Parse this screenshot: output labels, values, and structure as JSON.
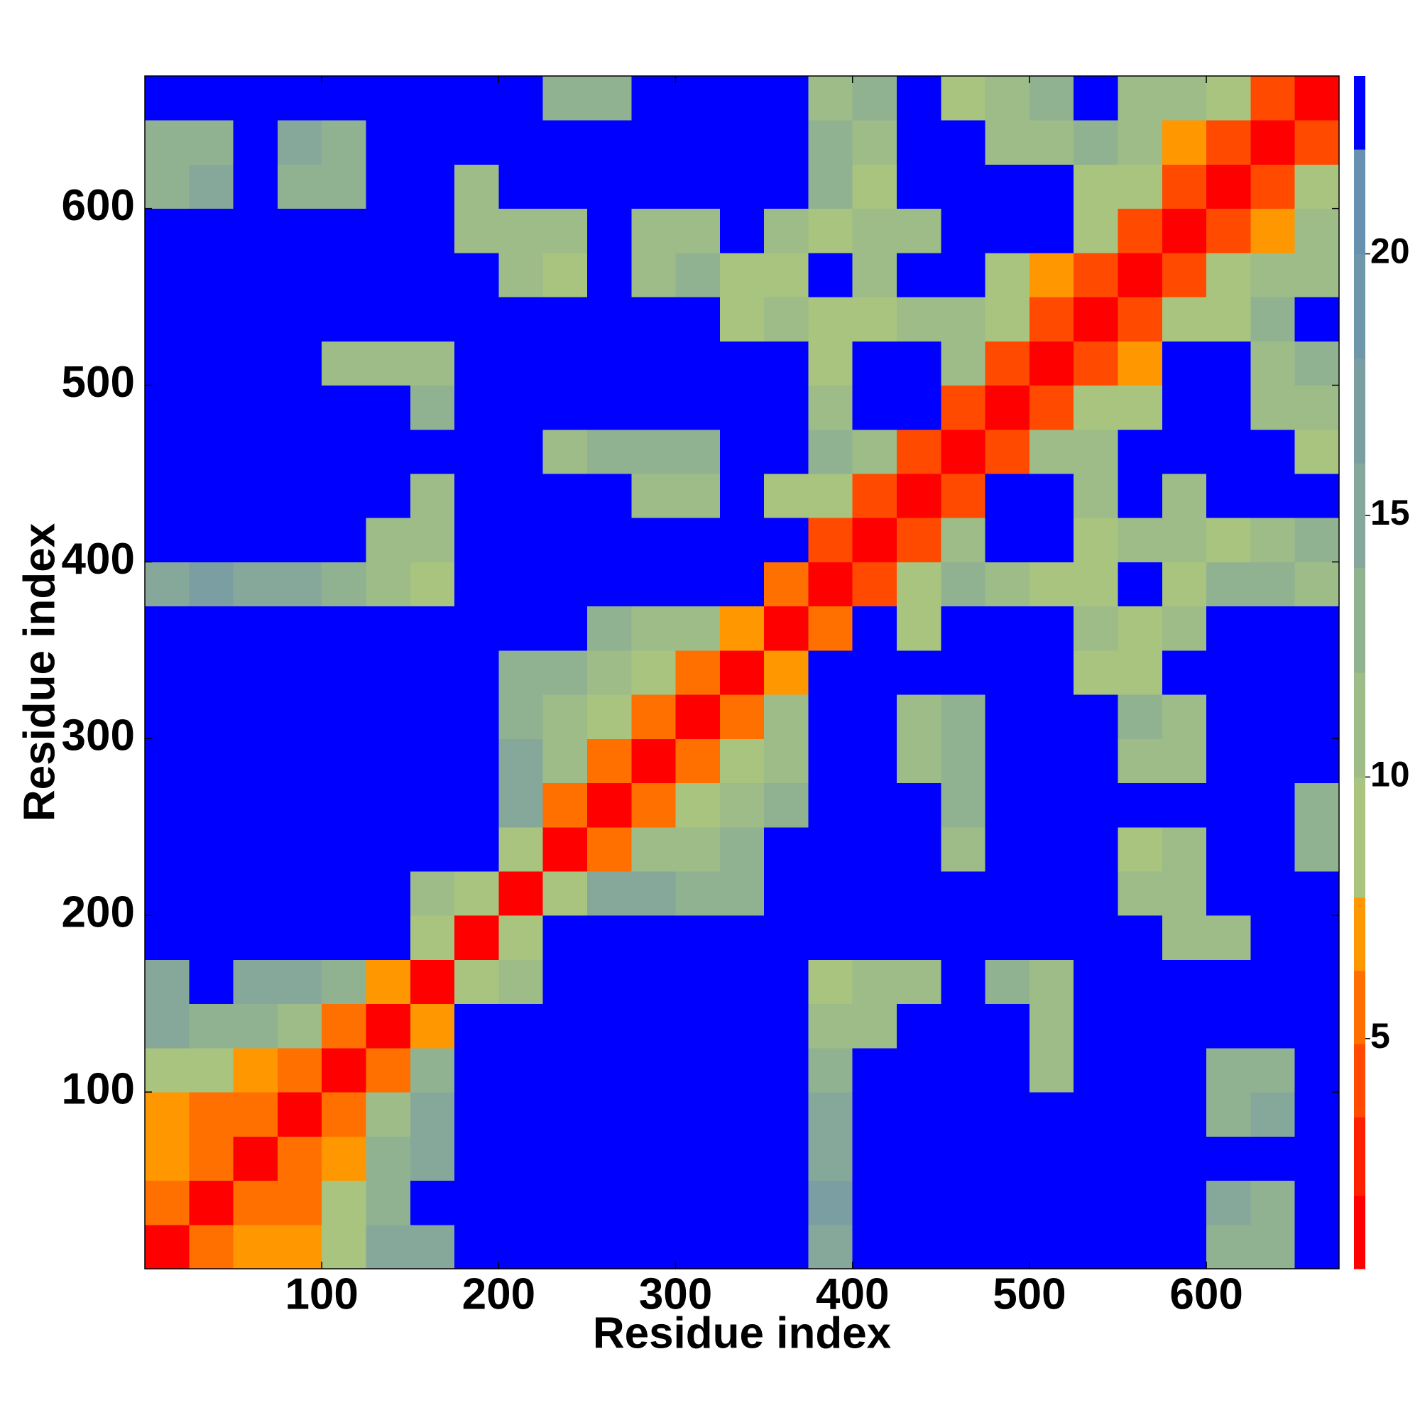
{
  "chart_data": {
    "type": "heatmap",
    "xlabel": "Residue index",
    "ylabel": "Residue index",
    "xlim": [
      0,
      675
    ],
    "ylim": [
      0,
      675
    ],
    "xticks": [
      100,
      200,
      300,
      400,
      500,
      600
    ],
    "yticks": [
      100,
      200,
      300,
      400,
      500,
      600
    ],
    "zlim": [
      0.6,
      23.4
    ],
    "zticks": [
      5,
      10,
      15,
      20
    ],
    "colorscale": [
      [
        0.6,
        "#ff0000"
      ],
      [
        2.0,
        "#ff2000"
      ],
      [
        3.5,
        "#ff4a00"
      ],
      [
        4.9,
        "#ff7000"
      ],
      [
        6.3,
        "#ff9800"
      ],
      [
        7.7,
        "#a8c47e"
      ],
      [
        10,
        "#9dbc88"
      ],
      [
        12,
        "#91b291"
      ],
      [
        14,
        "#86a89a"
      ],
      [
        16,
        "#7b9ea3"
      ],
      [
        18,
        "#7096aa"
      ],
      [
        20,
        "#6890b0"
      ],
      [
        22,
        "#0000ff"
      ]
    ],
    "values": [
      [
        1,
        5,
        7,
        7,
        8,
        14,
        15,
        23,
        23,
        23,
        23,
        23,
        23,
        23,
        23,
        15,
        23,
        23,
        23,
        23,
        23,
        23,
        23,
        23,
        13,
        13,
        23
      ],
      [
        5,
        1,
        5,
        6,
        8,
        13,
        23,
        23,
        23,
        23,
        23,
        23,
        23,
        23,
        23,
        16,
        23,
        23,
        23,
        23,
        23,
        23,
        23,
        23,
        14,
        13,
        23
      ],
      [
        7,
        5,
        1,
        5,
        7,
        12,
        15,
        23,
        23,
        23,
        23,
        23,
        23,
        23,
        23,
        14,
        23,
        23,
        23,
        23,
        23,
        23,
        23,
        23,
        23,
        23,
        23
      ],
      [
        7,
        6,
        5,
        1,
        5,
        10,
        14,
        23,
        23,
        23,
        23,
        23,
        23,
        23,
        23,
        14,
        23,
        23,
        23,
        23,
        23,
        23,
        23,
        23,
        13,
        14,
        23
      ],
      [
        8,
        8,
        7,
        5,
        1,
        6,
        13,
        23,
        23,
        23,
        23,
        23,
        23,
        23,
        23,
        13,
        23,
        23,
        23,
        23,
        11,
        23,
        23,
        23,
        12,
        13,
        23
      ],
      [
        14,
        13,
        12,
        10,
        6,
        1,
        7,
        23,
        23,
        23,
        23,
        23,
        23,
        23,
        23,
        10,
        11,
        23,
        23,
        23,
        10,
        23,
        23,
        23,
        23,
        23,
        23
      ],
      [
        15,
        23,
        15,
        14,
        13,
        7,
        1,
        8,
        10,
        23,
        23,
        23,
        23,
        23,
        23,
        9,
        10,
        11,
        23,
        13,
        11,
        23,
        23,
        23,
        23,
        23,
        23
      ],
      [
        23,
        23,
        23,
        23,
        23,
        23,
        8,
        1,
        9,
        23,
        23,
        23,
        23,
        23,
        23,
        23,
        23,
        23,
        23,
        23,
        23,
        23,
        23,
        10,
        10,
        23,
        23
      ],
      [
        23,
        23,
        23,
        23,
        23,
        23,
        10,
        9,
        1,
        8,
        14,
        15,
        12,
        12,
        23,
        23,
        23,
        23,
        23,
        23,
        23,
        23,
        10,
        11,
        23,
        23,
        23
      ],
      [
        23,
        23,
        23,
        23,
        23,
        23,
        23,
        23,
        8,
        1,
        6,
        10,
        11,
        13,
        23,
        23,
        23,
        23,
        10,
        23,
        23,
        23,
        9,
        10,
        23,
        23,
        12
      ],
      [
        23,
        23,
        23,
        23,
        23,
        23,
        23,
        23,
        14,
        6,
        1,
        6,
        8,
        11,
        12,
        23,
        23,
        23,
        13,
        23,
        23,
        23,
        23,
        23,
        23,
        23,
        12
      ],
      [
        23,
        23,
        23,
        23,
        23,
        23,
        23,
        23,
        15,
        10,
        6,
        1,
        5,
        8,
        11,
        23,
        23,
        10,
        12,
        23,
        23,
        23,
        11,
        10,
        23,
        23,
        23
      ],
      [
        23,
        23,
        23,
        23,
        23,
        23,
        23,
        23,
        12,
        11,
        8,
        5,
        1,
        5,
        10,
        23,
        23,
        11,
        13,
        23,
        23,
        23,
        12,
        11,
        23,
        23,
        23
      ],
      [
        23,
        23,
        23,
        23,
        23,
        23,
        23,
        23,
        12,
        13,
        11,
        8,
        5,
        1,
        7,
        23,
        23,
        23,
        23,
        23,
        23,
        9,
        8,
        23,
        23,
        23,
        23
      ],
      [
        23,
        23,
        23,
        23,
        23,
        23,
        23,
        23,
        23,
        23,
        12,
        11,
        10,
        7,
        1,
        6,
        23,
        9,
        23,
        23,
        23,
        10,
        9,
        10,
        23,
        23,
        23
      ],
      [
        15,
        16,
        14,
        14,
        13,
        10,
        9,
        23,
        23,
        23,
        23,
        23,
        23,
        23,
        6,
        1,
        4,
        8,
        12,
        10,
        9,
        8,
        23,
        9,
        12,
        13,
        11
      ],
      [
        23,
        23,
        23,
        23,
        23,
        11,
        10,
        23,
        23,
        23,
        23,
        23,
        23,
        23,
        23,
        4,
        1,
        4,
        10,
        23,
        23,
        9,
        11,
        11,
        9,
        10,
        12
      ],
      [
        23,
        23,
        23,
        23,
        23,
        23,
        11,
        23,
        23,
        23,
        23,
        10,
        11,
        23,
        9,
        8,
        4,
        1,
        4,
        23,
        23,
        11,
        23,
        10,
        23,
        23,
        23
      ],
      [
        23,
        23,
        23,
        23,
        23,
        23,
        23,
        23,
        23,
        10,
        13,
        12,
        13,
        23,
        23,
        12,
        10,
        4,
        1,
        4,
        10,
        10,
        23,
        23,
        23,
        23,
        9
      ],
      [
        23,
        23,
        23,
        23,
        23,
        23,
        13,
        23,
        23,
        23,
        23,
        23,
        23,
        23,
        23,
        10,
        23,
        23,
        4,
        1,
        4,
        8,
        9,
        23,
        23,
        10,
        10
      ],
      [
        23,
        23,
        23,
        23,
        11,
        10,
        11,
        23,
        23,
        23,
        23,
        23,
        23,
        23,
        23,
        9,
        23,
        23,
        10,
        4,
        1,
        4,
        7,
        23,
        23,
        11,
        12
      ],
      [
        23,
        23,
        23,
        23,
        23,
        23,
        23,
        23,
        23,
        23,
        23,
        23,
        23,
        9,
        10,
        8,
        9,
        11,
        10,
        8,
        4,
        1,
        4,
        8,
        9,
        12,
        23
      ],
      [
        23,
        23,
        23,
        23,
        23,
        23,
        23,
        23,
        10,
        9,
        23,
        11,
        12,
        8,
        9,
        23,
        11,
        23,
        23,
        9,
        7,
        4,
        1,
        4,
        8,
        10,
        11
      ],
      [
        23,
        23,
        23,
        23,
        23,
        23,
        23,
        10,
        11,
        10,
        23,
        10,
        11,
        23,
        10,
        9,
        11,
        10,
        23,
        23,
        23,
        8,
        4,
        1,
        4,
        7,
        10
      ],
      [
        13,
        14,
        23,
        13,
        12,
        23,
        23,
        10,
        23,
        23,
        23,
        23,
        23,
        23,
        23,
        12,
        9,
        23,
        23,
        23,
        23,
        9,
        8,
        4,
        1,
        4,
        8
      ],
      [
        13,
        13,
        23,
        14,
        13,
        23,
        23,
        23,
        23,
        23,
        23,
        23,
        23,
        23,
        23,
        13,
        10,
        23,
        23,
        10,
        11,
        12,
        10,
        7,
        4,
        1,
        4
      ],
      [
        23,
        23,
        23,
        23,
        23,
        23,
        23,
        23,
        23,
        12,
        12,
        23,
        23,
        23,
        23,
        11,
        12,
        23,
        9,
        10,
        12,
        23,
        11,
        10,
        8,
        4,
        1
      ]
    ]
  }
}
